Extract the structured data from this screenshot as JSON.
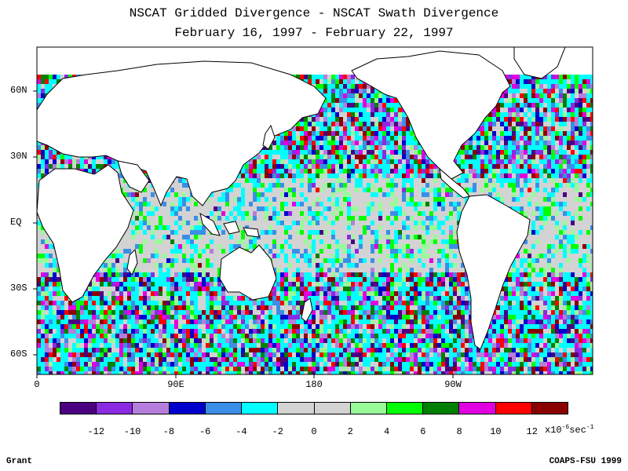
{
  "title": {
    "line1": "NSCAT Gridded Divergence - NSCAT Swath Divergence",
    "line2": "February 16, 1997 - February 22, 1997"
  },
  "map": {
    "lat_labels": [
      "60N",
      "30N",
      "EQ",
      "30S",
      "60S"
    ],
    "lon_labels": [
      "0",
      "90E",
      "180",
      "90W"
    ]
  },
  "colorbar": {
    "colors": [
      "#4b0082",
      "#8a2be2",
      "#b57edc",
      "#0000cd",
      "#3a8ee6",
      "#00ffff",
      "#d3d3d3",
      "#d3d3d3",
      "#98fb98",
      "#00ff00",
      "#008000",
      "#e000e0",
      "#ff0000",
      "#8b0000"
    ],
    "tick_labels": [
      "-12",
      "-10",
      "-8",
      "-6",
      "-4",
      "-2",
      "0",
      "2",
      "4",
      "6",
      "8",
      "10",
      "12"
    ],
    "unit_prefix": "x10",
    "unit_exp": "-6",
    "unit_mid": "sec",
    "unit_exp2": "-1"
  },
  "footer": {
    "left": "Grant",
    "right": "COAPS-FSU 1999"
  }
}
